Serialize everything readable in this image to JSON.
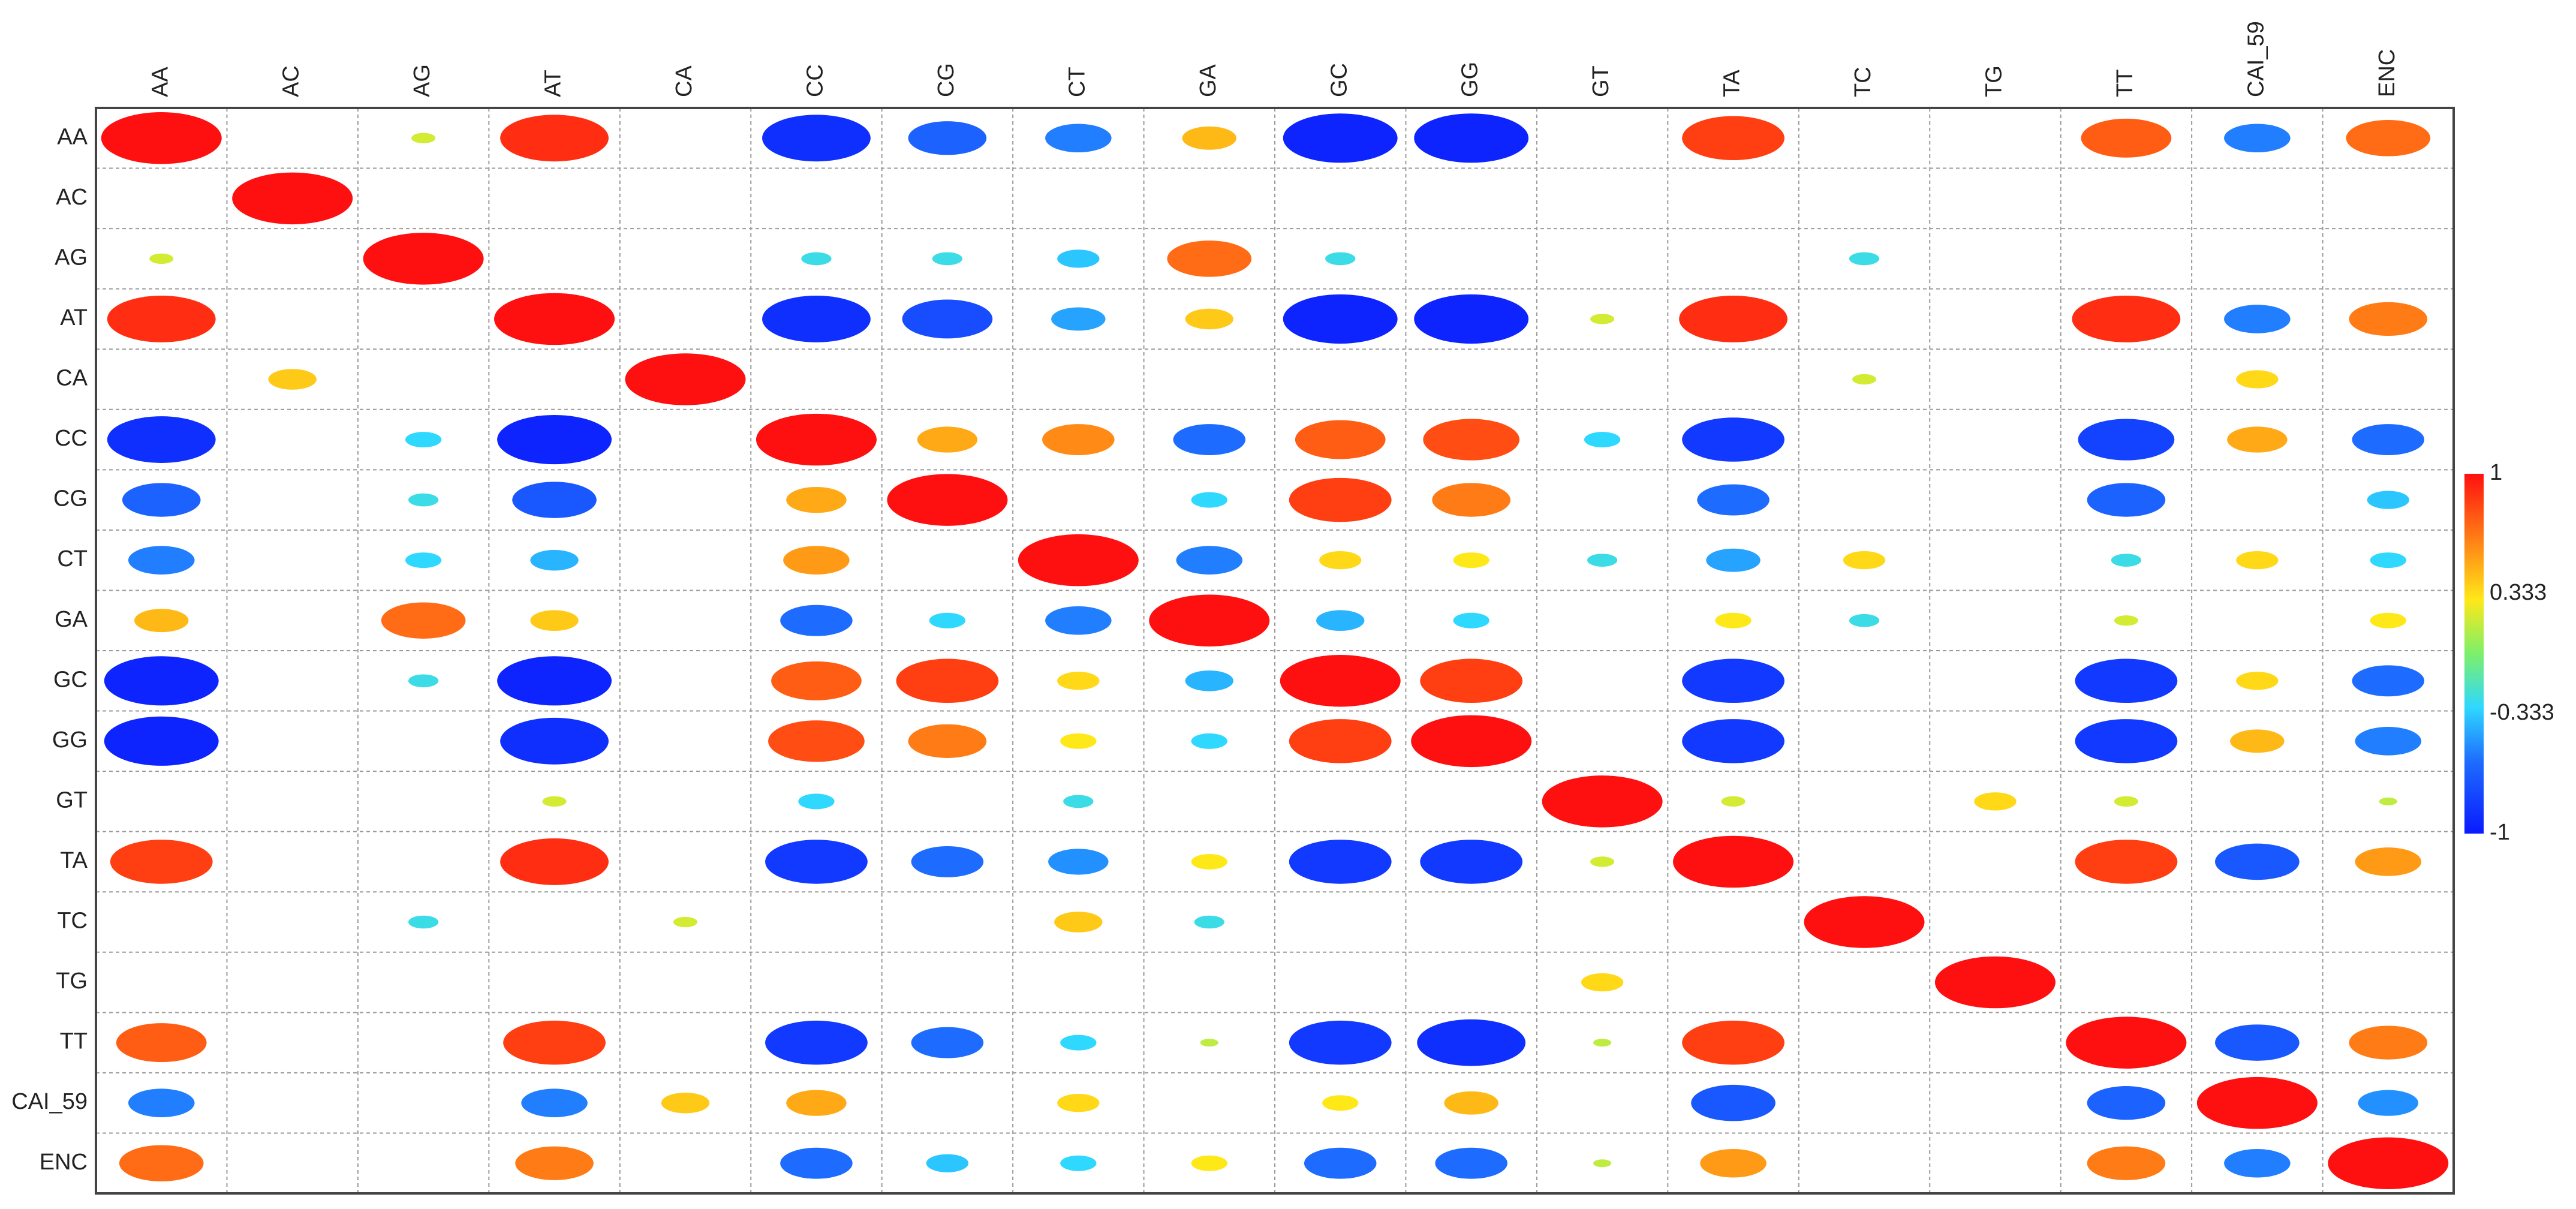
{
  "chart_data": {
    "type": "heatmap",
    "variables": [
      "AA",
      "AC",
      "AG",
      "AT",
      "CA",
      "CC",
      "CG",
      "CT",
      "GA",
      "GC",
      "GG",
      "GT",
      "TA",
      "TC",
      "TG",
      "TT",
      "CAI_59",
      "ENC"
    ],
    "values": [
      [
        1,
        0,
        0.2,
        0.9,
        0,
        -0.9,
        -0.65,
        -0.55,
        0.45,
        -0.95,
        -0.95,
        0,
        0.85,
        0,
        0,
        0.75,
        -0.55,
        0.7
      ],
      [
        0,
        1,
        0,
        0,
        0,
        0,
        0,
        0,
        0,
        0,
        0,
        0,
        0,
        0,
        0,
        0,
        0,
        0
      ],
      [
        0.2,
        0,
        1,
        0,
        0,
        -0.25,
        -0.25,
        -0.35,
        0.7,
        -0.25,
        0,
        0,
        0,
        -0.25,
        0,
        0,
        0,
        0
      ],
      [
        0.9,
        0,
        0,
        1,
        0,
        -0.9,
        -0.75,
        -0.45,
        0.4,
        -0.95,
        -0.95,
        0.2,
        0.9,
        0,
        0,
        0.9,
        -0.55,
        0.65
      ],
      [
        0,
        0.4,
        0,
        0,
        1,
        0,
        0,
        0,
        0,
        0,
        0,
        0,
        0,
        0.2,
        0,
        0,
        0.35,
        0
      ],
      [
        -0.9,
        0,
        -0.3,
        -0.95,
        0,
        1,
        0.5,
        0.6,
        -0.6,
        0.75,
        0.8,
        -0.3,
        -0.85,
        0,
        0,
        -0.8,
        0.5,
        -0.6
      ],
      [
        -0.65,
        0,
        -0.25,
        -0.7,
        0,
        0.5,
        1,
        0,
        -0.3,
        0.85,
        0.65,
        0,
        -0.6,
        0,
        0,
        -0.65,
        0,
        -0.35
      ],
      [
        -0.55,
        0,
        -0.3,
        -0.4,
        0,
        0.55,
        0,
        1,
        -0.55,
        0.35,
        0.3,
        -0.25,
        -0.45,
        0.35,
        0,
        -0.25,
        0.35,
        -0.3
      ],
      [
        0.45,
        0,
        0.7,
        0.4,
        0,
        -0.6,
        -0.3,
        -0.55,
        1,
        -0.4,
        -0.3,
        0,
        0.3,
        -0.25,
        0,
        0.2,
        0,
        0.3
      ],
      [
        -0.95,
        0,
        -0.25,
        -0.95,
        0,
        0.75,
        0.85,
        0.35,
        -0.4,
        1,
        0.85,
        0,
        -0.85,
        0,
        0,
        -0.85,
        0.35,
        -0.6
      ],
      [
        -0.95,
        0,
        0,
        -0.9,
        0,
        0.8,
        0.65,
        0.3,
        -0.3,
        0.85,
        1,
        0,
        -0.85,
        0,
        0,
        -0.85,
        0.45,
        -0.55
      ],
      [
        0,
        0,
        0,
        0.2,
        0,
        -0.3,
        0,
        -0.25,
        0,
        0,
        0,
        1,
        0.2,
        0,
        0.35,
        0.2,
        0,
        0.15
      ],
      [
        0.85,
        0,
        0,
        0.9,
        0,
        -0.85,
        -0.6,
        -0.5,
        0.3,
        -0.85,
        -0.85,
        0.2,
        1,
        0,
        0,
        0.85,
        -0.7,
        0.55
      ],
      [
        0,
        0,
        -0.25,
        0,
        0.2,
        0,
        0,
        0.4,
        -0.25,
        0,
        0,
        0,
        0,
        1,
        0,
        0,
        0,
        0
      ],
      [
        0,
        0,
        0,
        0,
        0,
        0,
        0,
        0,
        0,
        0,
        0,
        0.35,
        0,
        0,
        1,
        0,
        0,
        0
      ],
      [
        0.75,
        0,
        0,
        0.85,
        0,
        -0.85,
        -0.6,
        -0.3,
        0.15,
        -0.85,
        -0.9,
        0.15,
        0.85,
        0,
        0,
        1,
        -0.7,
        0.65
      ],
      [
        -0.55,
        0,
        0,
        -0.55,
        0.4,
        0.5,
        0,
        0.35,
        0,
        0.3,
        0.45,
        0,
        -0.7,
        0,
        0,
        -0.65,
        1,
        -0.5
      ],
      [
        0.7,
        0,
        0,
        0.65,
        0,
        -0.6,
        -0.35,
        -0.3,
        0.3,
        -0.6,
        -0.6,
        0.15,
        0.55,
        0,
        0,
        0.65,
        -0.55,
        1
      ]
    ],
    "colorbar": {
      "min": -1,
      "max": 1,
      "tick_labels": [
        "1",
        "0.333",
        "-0.333",
        "-1"
      ],
      "tick_values": [
        1,
        0.333,
        -0.333,
        -1
      ]
    },
    "grid": true
  }
}
